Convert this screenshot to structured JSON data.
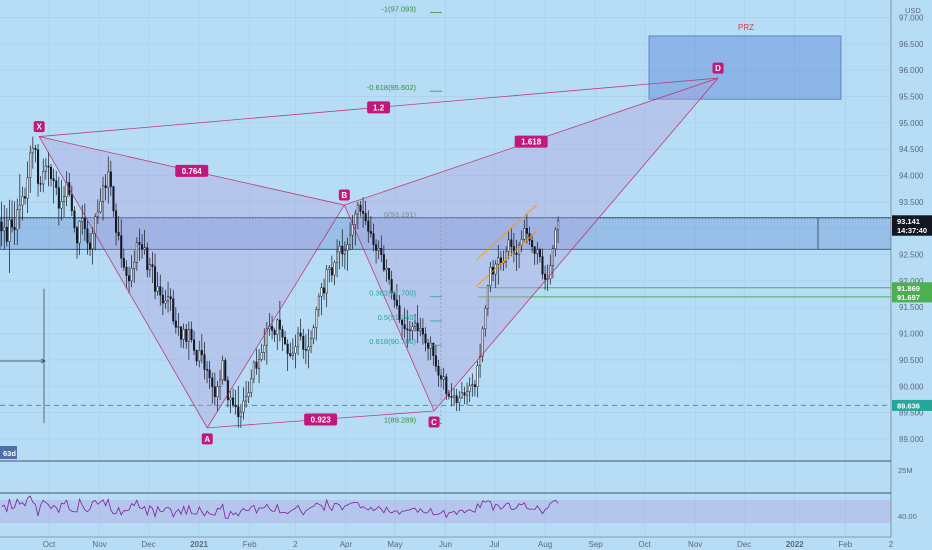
{
  "chart_data": {
    "type": "candlestick",
    "currency": "USD",
    "ylim": [
      88.6,
      97.2
    ],
    "y_ticks": [
      "97.000",
      "96.500",
      "96.000",
      "95.500",
      "95.000",
      "94.500",
      "94.000",
      "93.500",
      "93.000",
      "92.500",
      "92.000",
      "91.500",
      "91.000",
      "90.500",
      "90.000",
      "89.500",
      "89.000"
    ],
    "x_ticks": [
      "Oct",
      "Nov",
      "Dec",
      "2021",
      "Feb",
      "2",
      "Apr",
      "May",
      "Jun",
      "Jul",
      "Aug",
      "Sep",
      "Oct",
      "Nov",
      "Dec",
      "2022",
      "Feb",
      "2"
    ],
    "pattern": {
      "points": [
        {
          "name": "X",
          "date": "2020-09-25",
          "price": 94.74
        },
        {
          "name": "A",
          "date": "2021-01-06",
          "price": 89.21
        },
        {
          "name": "B",
          "date": "2021-03-31",
          "price": 93.44
        },
        {
          "name": "C",
          "date": "2021-05-25",
          "price": 89.53
        },
        {
          "name": "D",
          "date": "2021-11-15",
          "price": 95.85
        }
      ],
      "ratios": [
        {
          "text": "0.764",
          "leg": "XB"
        },
        {
          "text": "0.923",
          "leg": "AC"
        },
        {
          "text": "1.2",
          "leg": "XD"
        },
        {
          "text": "1.618",
          "leg": "BD"
        }
      ],
      "prz_label": "PRZ",
      "prz_range": [
        95.45,
        96.65
      ]
    },
    "fib_levels": [
      {
        "label": "-1(97.093)",
        "price": 97.093
      },
      {
        "label": "-0.618(95.602)",
        "price": 95.602
      },
      {
        "label": "0(93.191)",
        "price": 93.191
      },
      {
        "label": "0.382(91.700)",
        "price": 91.7
      },
      {
        "label": "0.5(91.240)",
        "price": 91.24
      },
      {
        "label": "0.618(90.780)",
        "price": 90.78
      },
      {
        "label": "1(89.289)",
        "price": 89.289
      }
    ],
    "price_tags": [
      {
        "text": "93.141",
        "price": 93.141,
        "color": "#131722"
      },
      {
        "text": "14:37:40",
        "price": 93.0,
        "color": "#131722"
      },
      {
        "text": "91.869",
        "price": 91.869,
        "color": "#4caf50"
      },
      {
        "text": "91.697",
        "price": 91.697,
        "color": "#4caf50"
      },
      {
        "text": "89.636",
        "price": 89.636,
        "color": "#26a69a"
      }
    ],
    "zone_band": [
      92.6,
      93.2
    ],
    "hline_dashed": 89.636,
    "indicator": {
      "name": "RSI",
      "tick": "40.00"
    },
    "misc_labels": {
      "volume_tick": "25M",
      "interval_tag": "63d"
    },
    "ohlc": [
      [
        93.12,
        93.5,
        92.66,
        92.95
      ],
      [
        92.95,
        93.44,
        92.59,
        93.02
      ],
      [
        93.02,
        93.38,
        92.65,
        92.75
      ],
      [
        92.75,
        93.54,
        92.15,
        93.16
      ],
      [
        93.16,
        93.53,
        92.92,
        93.02
      ],
      [
        93.02,
        93.51,
        92.68,
        92.97
      ],
      [
        92.97,
        93.56,
        92.68,
        93.35
      ],
      [
        93.35,
        94.03,
        92.99,
        93.44
      ],
      [
        93.44,
        93.79,
        93.15,
        93.6
      ],
      [
        93.6,
        93.77,
        93.45,
        93.57
      ],
      [
        93.57,
        94.27,
        93.29,
        93.96
      ],
      [
        93.96,
        94.57,
        93.67,
        94.43
      ],
      [
        94.43,
        94.74,
        94.13,
        94.52
      ],
      [
        94.52,
        94.58,
        94.25,
        94.49
      ],
      [
        94.49,
        94.6,
        93.6,
        93.85
      ],
      [
        93.85,
        93.99,
        93.69,
        93.84
      ],
      [
        93.84,
        94.32,
        93.68,
        94.08
      ],
      [
        94.08,
        94.33,
        93.92,
        94.18
      ],
      [
        94.18,
        94.45,
        93.8,
        94.16
      ],
      [
        94.16,
        94.22,
        93.79,
        93.94
      ],
      [
        93.94,
        94.13,
        93.47,
        93.9
      ],
      [
        93.9,
        94.09,
        93.63,
        93.77
      ],
      [
        93.77,
        93.98,
        93.05,
        93.38
      ],
      [
        93.38,
        93.92,
        93.14,
        93.51
      ],
      [
        93.51,
        93.8,
        93.21,
        93.6
      ],
      [
        93.6,
        94.08,
        93.42,
        93.87
      ],
      [
        93.87,
        94.05,
        93.6,
        93.64
      ],
      [
        93.64,
        93.81,
        93.23,
        93.33
      ],
      [
        93.33,
        93.42,
        92.92,
        93.01
      ],
      [
        93.01,
        93.04,
        92.42,
        92.72
      ],
      [
        92.72,
        93.15,
        92.49,
        93.13
      ],
      [
        93.13,
        93.44,
        92.88,
        93.19
      ],
      [
        93.19,
        93.47,
        92.76,
        92.99
      ],
      [
        92.99,
        93.15,
        92.5,
        92.72
      ],
      [
        92.72,
        92.91,
        92.47,
        92.61
      ],
      [
        92.61,
        93.02,
        92.31,
        92.9
      ],
      [
        92.9,
        93.28,
        92.58,
        93.22
      ],
      [
        93.22,
        93.55,
        93.08,
        93.31
      ],
      [
        93.31,
        93.76,
        93.28,
        93.51
      ],
      [
        93.51,
        93.98,
        93.15,
        93.81
      ],
      [
        93.81,
        94.03,
        93.53,
        93.77
      ],
      [
        93.77,
        94.36,
        93.47,
        94.07
      ],
      [
        94.07,
        94.28,
        93.61,
        93.79
      ],
      [
        93.79,
        93.81,
        93.21,
        93.33
      ],
      [
        93.33,
        93.47,
        92.67,
        92.92
      ],
      [
        92.92,
        93.23,
        92.77,
        92.86
      ],
      [
        92.86,
        93.17,
        92.25,
        92.43
      ],
      [
        92.43,
        92.61,
        92.19,
        92.26
      ],
      [
        92.26,
        92.39,
        91.85,
        92.1
      ],
      [
        92.1,
        92.27,
        91.76,
        92.0
      ],
      [
        92.0,
        92.49,
        91.88,
        92.24
      ],
      [
        92.24,
        92.58,
        91.96,
        92.35
      ],
      [
        92.35,
        92.83,
        92.19,
        92.73
      ],
      [
        92.73,
        92.99,
        92.38,
        92.69
      ],
      [
        92.69,
        92.89,
        92.42,
        92.6
      ],
      [
        92.6,
        92.97,
        92.5,
        92.63
      ],
      [
        92.63,
        92.73,
        92.07,
        92.21
      ],
      [
        92.21,
        92.44,
        92.07,
        92.31
      ],
      [
        92.31,
        92.55,
        91.96,
        92.27
      ],
      [
        92.27,
        92.52,
        91.65,
        91.8
      ],
      [
        91.8,
        92.17,
        91.72,
        91.89
      ],
      [
        91.89,
        92.12,
        91.53,
        91.73
      ],
      [
        91.73,
        91.88,
        91.35,
        91.58
      ],
      [
        91.58,
        91.83,
        91.47,
        91.62
      ],
      [
        91.62,
        91.98,
        91.4,
        91.7
      ],
      [
        91.7,
        91.86,
        91.43,
        91.66
      ],
      [
        91.66,
        91.83,
        91.17,
        91.24
      ],
      [
        91.24,
        91.5,
        91.0,
        91.12
      ],
      [
        91.12,
        91.39,
        90.96,
        91.13
      ],
      [
        91.13,
        91.13,
        90.73,
        90.89
      ],
      [
        90.89,
        91.19,
        90.72,
        91.08
      ],
      [
        91.08,
        91.18,
        90.71,
        90.85
      ],
      [
        90.85,
        91.23,
        90.5,
        91.08
      ],
      [
        91.08,
        91.23,
        90.83,
        90.88
      ],
      [
        90.88,
        91.05,
        90.59,
        90.68
      ],
      [
        90.68,
        90.7,
        90.39,
        90.48
      ],
      [
        90.48,
        90.86,
        90.36,
        90.68
      ],
      [
        90.68,
        90.99,
        90.44,
        90.6
      ],
      [
        90.6,
        90.84,
        90.13,
        90.32
      ],
      [
        90.32,
        90.48,
        90.06,
        90.31
      ],
      [
        90.31,
        90.48,
        89.95,
        90.16
      ],
      [
        90.16,
        90.26,
        89.67,
        89.99
      ],
      [
        89.99,
        90.26,
        89.63,
        89.8
      ],
      [
        89.8,
        90.1,
        89.52,
        89.99
      ],
      [
        89.99,
        90.31,
        89.74,
        90.12
      ],
      [
        90.12,
        90.58,
        90.03,
        90.49
      ],
      [
        90.49,
        90.54,
        90.09,
        90.11
      ],
      [
        90.11,
        90.19,
        89.6,
        89.74
      ],
      [
        89.74,
        89.91,
        89.49,
        89.78
      ],
      [
        89.78,
        89.96,
        89.6,
        89.64
      ],
      [
        89.64,
        89.93,
        89.46,
        89.61
      ],
      [
        89.61,
        90.01,
        89.21,
        89.42
      ],
      [
        89.42,
        89.66,
        89.21,
        89.51
      ],
      [
        89.51,
        89.98,
        89.37,
        89.72
      ],
      [
        89.72,
        90.1,
        89.59,
        89.8
      ],
      [
        89.8,
        90.09,
        89.68,
        89.88
      ],
      [
        89.88,
        90.32,
        89.79,
        90.14
      ],
      [
        90.14,
        90.49,
        90.06,
        90.46
      ],
      [
        90.46,
        90.71,
        90.22,
        90.34
      ],
      [
        90.34,
        90.71,
        90.06,
        90.51
      ],
      [
        90.51,
        90.81,
        90.47,
        90.64
      ],
      [
        90.64,
        91.1,
        90.49,
        90.78
      ],
      [
        90.78,
        91.22,
        90.41,
        91.09
      ],
      [
        91.09,
        91.39,
        90.96,
        91.14
      ],
      [
        91.14,
        91.34,
        90.89,
        91.06
      ],
      [
        91.06,
        91.11,
        90.84,
        90.98
      ],
      [
        90.98,
        91.29,
        90.69,
        91.26
      ],
      [
        91.26,
        91.62,
        90.85,
        91.08
      ],
      [
        91.08,
        91.15,
        90.67,
        90.93
      ],
      [
        90.93,
        91.05,
        90.79,
        90.8
      ],
      [
        90.8,
        90.89,
        90.29,
        90.62
      ],
      [
        90.62,
        90.83,
        90.54,
        90.58
      ],
      [
        90.58,
        90.91,
        90.5,
        90.63
      ],
      [
        90.63,
        90.98,
        90.34,
        90.75
      ],
      [
        90.75,
        91.13,
        90.59,
        91.01
      ],
      [
        91.01,
        91.28,
        90.87,
        90.95
      ],
      [
        90.95,
        91.09,
        90.52,
        90.7
      ],
      [
        90.7,
        90.99,
        90.42,
        90.68
      ],
      [
        90.68,
        91.09,
        90.34,
        90.75
      ],
      [
        90.75,
        91.06,
        90.63,
        90.91
      ],
      [
        90.91,
        91.17,
        90.8,
        91.11
      ],
      [
        91.11,
        91.51,
        90.87,
        91.46
      ],
      [
        91.46,
        91.76,
        91.32,
        91.71
      ],
      [
        91.71,
        91.96,
        91.35,
        91.87
      ],
      [
        91.87,
        92.04,
        91.64,
        91.77
      ],
      [
        91.77,
        92.3,
        91.5,
        92.22
      ],
      [
        92.22,
        92.3,
        91.97,
        92.25
      ],
      [
        92.25,
        92.48,
        91.98,
        92.11
      ],
      [
        92.11,
        92.39,
        91.92,
        92.35
      ],
      [
        92.35,
        92.79,
        92.07,
        92.55
      ],
      [
        92.55,
        92.76,
        92.22,
        92.66
      ],
      [
        92.66,
        92.98,
        92.27,
        92.51
      ],
      [
        92.51,
        92.75,
        92.22,
        92.58
      ],
      [
        92.58,
        92.82,
        92.19,
        92.69
      ],
      [
        92.69,
        93.11,
        92.58,
        92.87
      ],
      [
        92.87,
        93.25,
        92.6,
        93.07
      ],
      [
        93.07,
        93.35,
        92.67,
        93.27
      ],
      [
        93.27,
        93.5,
        92.98,
        93.44
      ],
      [
        93.44,
        93.52,
        93.22,
        93.32
      ],
      [
        93.32,
        93.59,
        93.01,
        93.28
      ],
      [
        93.28,
        93.52,
        93.06,
        93.14
      ],
      [
        93.14,
        93.34,
        92.72,
        92.94
      ],
      [
        92.94,
        93.23,
        92.82,
        92.9
      ],
      [
        92.9,
        93.09,
        92.56,
        92.69
      ],
      [
        92.69,
        92.79,
        92.33,
        92.58
      ],
      [
        92.58,
        92.77,
        92.41,
        92.62
      ],
      [
        92.62,
        92.86,
        92.36,
        92.5
      ],
      [
        92.5,
        92.68,
        92.17,
        92.21
      ],
      [
        92.21,
        92.41,
        91.98,
        92.24
      ],
      [
        92.24,
        92.24,
        91.93,
        92.03
      ],
      [
        92.03,
        92.19,
        91.65,
        91.77
      ],
      [
        91.77,
        91.8,
        91.49,
        91.64
      ],
      [
        91.64,
        91.94,
        91.46,
        91.53
      ],
      [
        91.53,
        91.73,
        91.2,
        91.26
      ],
      [
        91.26,
        91.29,
        90.88,
        91.17
      ],
      [
        91.17,
        91.49,
        90.92,
        91.09
      ],
      [
        91.09,
        91.45,
        90.73,
        91.07
      ],
      [
        91.07,
        91.24,
        90.83,
        91.06
      ],
      [
        91.06,
        91.22,
        90.88,
        91.13
      ],
      [
        91.13,
        91.37,
        91.04,
        91.2
      ],
      [
        91.2,
        91.54,
        90.82,
        91.05
      ],
      [
        91.05,
        91.3,
        90.95,
        91.1
      ],
      [
        91.1,
        91.29,
        90.79,
        90.99
      ],
      [
        90.99,
        91.12,
        90.66,
        90.82
      ],
      [
        90.82,
        90.9,
        90.49,
        90.72
      ],
      [
        90.72,
        90.95,
        90.5,
        90.82
      ],
      [
        90.82,
        90.83,
        90.39,
        90.58
      ],
      [
        90.58,
        90.78,
        90.28,
        90.38
      ],
      [
        90.38,
        90.5,
        89.99,
        90.21
      ],
      [
        90.21,
        90.33,
        89.97,
        90.13
      ],
      [
        90.13,
        90.35,
        89.94,
        90.18
      ],
      [
        90.18,
        90.24,
        89.74,
        89.86
      ],
      [
        89.86,
        89.93,
        89.75,
        89.81
      ],
      [
        89.81,
        90.06,
        89.62,
        89.79
      ],
      [
        89.79,
        89.96,
        89.64,
        89.82
      ],
      [
        89.82,
        89.95,
        89.53,
        89.69
      ],
      [
        89.69,
        89.91,
        89.53,
        89.78
      ],
      [
        89.78,
        90.08,
        89.76,
        89.88
      ],
      [
        89.88,
        89.99,
        89.66,
        89.83
      ],
      [
        89.83,
        90.07,
        89.64,
        89.9
      ],
      [
        89.9,
        90.17,
        89.7,
        90.01
      ],
      [
        90.01,
        90.24,
        89.8,
        90.03
      ],
      [
        90.03,
        90.12,
        89.81,
        89.99
      ],
      [
        89.99,
        90.48,
        89.79,
        90.39
      ],
      [
        90.39,
        90.81,
        90.16,
        90.57
      ],
      [
        90.57,
        91.14,
        90.46,
        91.09
      ],
      [
        91.09,
        91.54,
        90.94,
        91.48
      ],
      [
        91.48,
        91.93,
        91.33,
        91.91
      ],
      [
        91.91,
        92.36,
        91.79,
        92.26
      ],
      [
        92.26,
        92.4,
        91.99,
        92.13
      ],
      [
        92.13,
        92.39,
        91.87,
        92.32
      ],
      [
        92.32,
        92.68,
        91.93,
        92.44
      ],
      [
        92.44,
        92.57,
        92.2,
        92.34
      ],
      [
        92.34,
        92.58,
        92.19,
        92.37
      ],
      [
        92.37,
        92.66,
        92.24,
        92.56
      ],
      [
        92.56,
        92.94,
        92.42,
        92.78
      ],
      [
        92.78,
        93.0,
        92.47,
        92.65
      ],
      [
        92.65,
        92.91,
        92.35,
        92.53
      ],
      [
        92.53,
        92.78,
        92.19,
        92.5
      ],
      [
        92.5,
        92.74,
        92.24,
        92.68
      ],
      [
        92.68,
        92.96,
        92.55,
        92.79
      ],
      [
        92.79,
        93.16,
        92.75,
        93.0
      ],
      [
        93.0,
        93.26,
        92.71,
        92.9
      ],
      [
        92.9,
        93.03,
        92.68,
        92.77
      ],
      [
        92.77,
        92.89,
        92.53,
        92.65
      ],
      [
        92.65,
        92.66,
        92.3,
        92.52
      ],
      [
        92.52,
        92.74,
        92.31,
        92.59
      ],
      [
        92.59,
        92.63,
        92.35,
        92.46
      ],
      [
        92.46,
        92.61,
        92.03,
        92.13
      ],
      [
        92.13,
        92.29,
        91.83,
        92.03
      ],
      [
        92.03,
        92.31,
        91.81,
        92.04
      ],
      [
        92.04,
        92.5,
        91.93,
        92.29
      ],
      [
        92.29,
        92.68,
        92.05,
        92.61
      ],
      [
        92.61,
        93.02,
        92.46,
        92.97
      ],
      [
        92.97,
        93.22,
        92.72,
        93.14
      ]
    ]
  }
}
